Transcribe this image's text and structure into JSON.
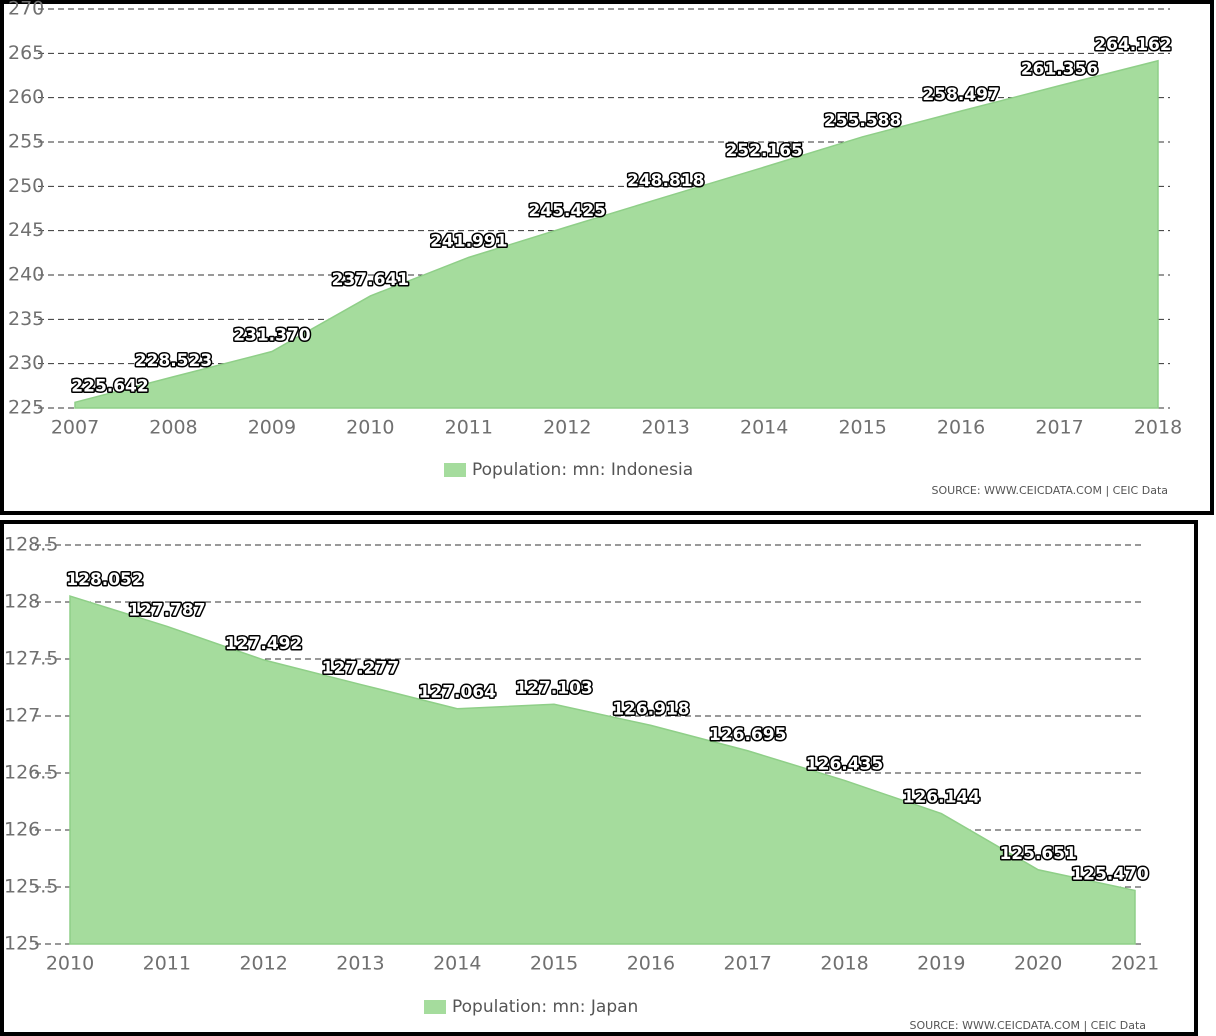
{
  "chart_data": [
    {
      "type": "area",
      "x": [
        2007,
        2008,
        2009,
        2010,
        2011,
        2012,
        2013,
        2014,
        2015,
        2016,
        2017,
        2018
      ],
      "series": [
        {
          "name": "Population: mn: Indonesia",
          "color": "#a5dc9d",
          "values": [
            225.642,
            228.523,
            231.37,
            237.641,
            241.991,
            245.425,
            248.818,
            252.165,
            255.588,
            258.497,
            261.356,
            264.162
          ],
          "value_labels": [
            "225.642",
            "228.523",
            "231.370",
            "237.641",
            "241.991",
            "245.425",
            "248.818",
            "252.165",
            "255.588",
            "258.497",
            "261.356",
            "264.162"
          ]
        }
      ],
      "xlim": [
        2007,
        2018
      ],
      "xticks": [
        2007,
        2008,
        2009,
        2010,
        2011,
        2012,
        2013,
        2014,
        2015,
        2016,
        2017,
        2018
      ],
      "ylim": [
        225,
        270
      ],
      "yticks": [
        225,
        230,
        235,
        240,
        245,
        250,
        255,
        260,
        265,
        270
      ],
      "grid": true,
      "legend": "bottom",
      "source": "SOURCE: WWW.CEICDATA.COM | CEIC Data"
    },
    {
      "type": "area",
      "x": [
        2010,
        2011,
        2012,
        2013,
        2014,
        2015,
        2016,
        2017,
        2018,
        2019,
        2020,
        2021
      ],
      "series": [
        {
          "name": "Population: mn: Japan",
          "color": "#a5dc9d",
          "values": [
            128.052,
            127.787,
            127.492,
            127.277,
            127.064,
            127.103,
            126.918,
            126.695,
            126.435,
            126.144,
            125.651,
            125.47
          ],
          "value_labels": [
            "128.052",
            "127.787",
            "127.492",
            "127.277",
            "127.064",
            "127.103",
            "126.918",
            "126.695",
            "126.435",
            "126.144",
            "125.651",
            "125.470"
          ]
        }
      ],
      "xlim": [
        2010,
        2021
      ],
      "xticks": [
        2010,
        2011,
        2012,
        2013,
        2014,
        2015,
        2016,
        2017,
        2018,
        2019,
        2020,
        2021
      ],
      "ylim": [
        125,
        128.5
      ],
      "yticks": [
        125,
        125.5,
        126,
        126.5,
        127,
        127.5,
        128,
        128.5
      ],
      "grid": true,
      "legend": "bottom",
      "source": "SOURCE: WWW.CEICDATA.COM | CEIC Data"
    }
  ]
}
